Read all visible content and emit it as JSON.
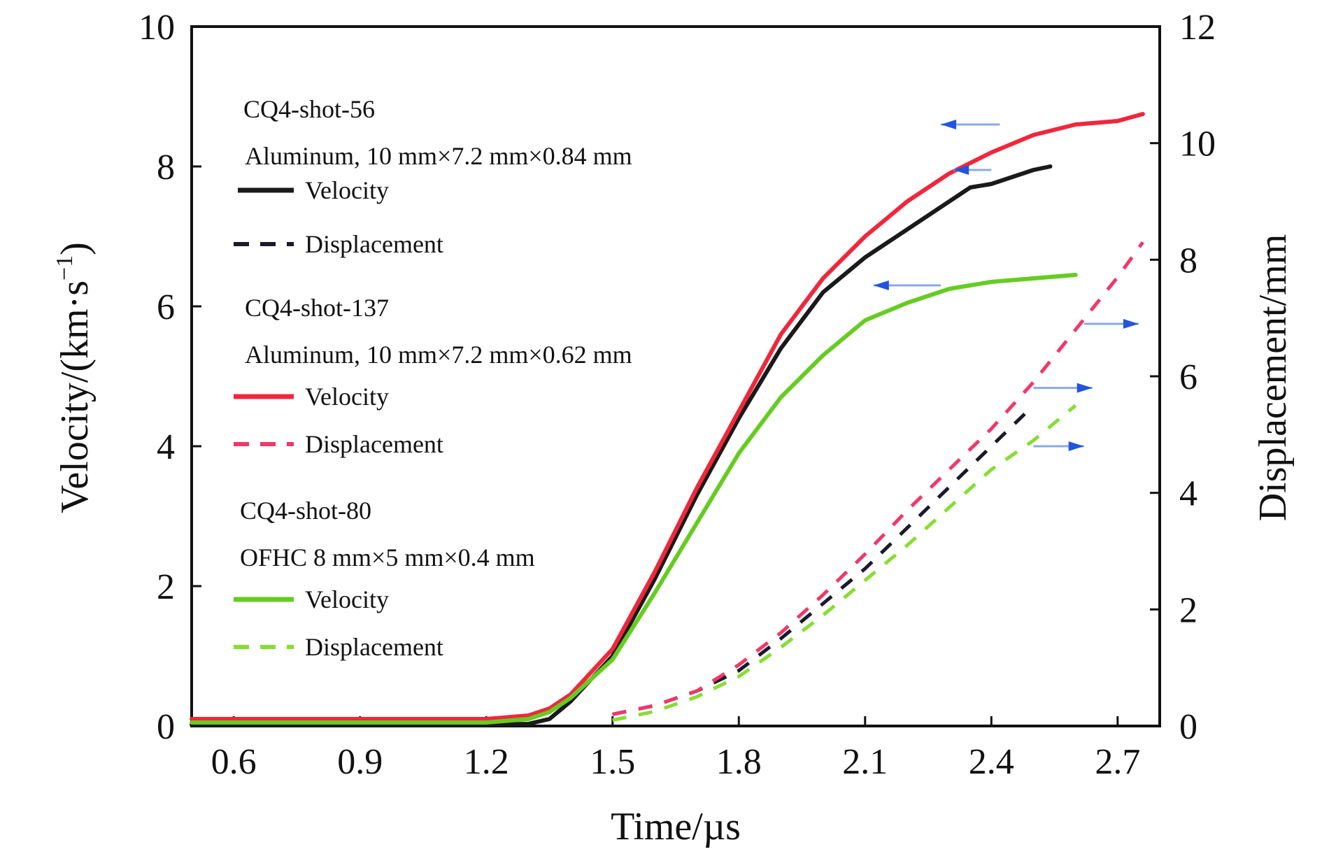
{
  "chart_data": {
    "type": "line",
    "xlabel": "Time/µs",
    "ylabel": "Velocity/(km·s",
    "ylabel_sup": "−1",
    "ylabel_close": ")",
    "y2label": "Displacement/mm",
    "xlim": [
      0.5,
      2.8
    ],
    "ylim": [
      0,
      10
    ],
    "y2lim": [
      0,
      12
    ],
    "xticks": [
      "0.6",
      "0.9",
      "1.2",
      "1.5",
      "1.8",
      "2.1",
      "2.4",
      "2.7"
    ],
    "xtick_values": [
      0.6,
      0.9,
      1.2,
      1.5,
      1.8,
      2.1,
      2.4,
      2.7
    ],
    "yticks": [
      "0",
      "2",
      "4",
      "6",
      "8",
      "10"
    ],
    "ytick_values": [
      0,
      2,
      4,
      6,
      8,
      10
    ],
    "y2ticks": [
      "0",
      "2",
      "4",
      "6",
      "8",
      "10",
      "12"
    ],
    "y2tick_values": [
      0,
      2,
      4,
      6,
      8,
      10,
      12
    ],
    "legend": [
      {
        "shot": "CQ4-shot-56",
        "material": "Aluminum, 10 mm×7.2 mm×0.84 mm",
        "velocity_label": "Velocity",
        "displacement_label": "Displacement",
        "color": "#1a1a1a",
        "disp_color": "#1a1a2a"
      },
      {
        "shot": "CQ4-shot-137",
        "material": "Aluminum, 10 mm×7.2 mm×0.62 mm",
        "velocity_label": "Velocity",
        "displacement_label": "Displacement",
        "color": "#f0273c",
        "disp_color": "#f0386a"
      },
      {
        "shot": "CQ4-shot-80",
        "material": "OFHC 8 mm×5 mm×0.4 mm",
        "velocity_label": "Velocity",
        "displacement_label": "Displacement",
        "color": "#66cc22",
        "disp_color": "#88dd33"
      }
    ],
    "series": [
      {
        "shot": "CQ4-shot-56",
        "quantity": "velocity",
        "axis": "left",
        "style": "solid",
        "color": "#1a1a1a",
        "x": [
          0.5,
          1.2,
          1.3,
          1.35,
          1.4,
          1.5,
          1.6,
          1.7,
          1.8,
          1.9,
          2.0,
          2.1,
          2.2,
          2.3,
          2.35,
          2.4,
          2.45,
          2.5,
          2.54
        ],
        "y": [
          0.02,
          0.02,
          0.03,
          0.1,
          0.35,
          1.0,
          2.1,
          3.3,
          4.4,
          5.4,
          6.2,
          6.7,
          7.1,
          7.5,
          7.7,
          7.75,
          7.85,
          7.95,
          8.0
        ]
      },
      {
        "shot": "CQ4-shot-137",
        "quantity": "velocity",
        "axis": "left",
        "style": "solid",
        "color": "#f0273c",
        "x": [
          0.5,
          1.2,
          1.3,
          1.35,
          1.4,
          1.5,
          1.6,
          1.7,
          1.8,
          1.9,
          2.0,
          2.1,
          2.2,
          2.3,
          2.4,
          2.5,
          2.6,
          2.7,
          2.76
        ],
        "y": [
          0.1,
          0.1,
          0.15,
          0.25,
          0.45,
          1.1,
          2.2,
          3.4,
          4.5,
          5.6,
          6.4,
          7.0,
          7.5,
          7.9,
          8.2,
          8.45,
          8.6,
          8.65,
          8.75
        ]
      },
      {
        "shot": "CQ4-shot-80",
        "quantity": "velocity",
        "axis": "left",
        "style": "solid",
        "color": "#66cc22",
        "x": [
          0.5,
          1.2,
          1.3,
          1.35,
          1.4,
          1.5,
          1.6,
          1.7,
          1.8,
          1.9,
          2.0,
          2.1,
          2.2,
          2.3,
          2.4,
          2.5,
          2.6
        ],
        "y": [
          0.05,
          0.05,
          0.1,
          0.2,
          0.4,
          0.95,
          1.9,
          2.9,
          3.9,
          4.7,
          5.3,
          5.8,
          6.05,
          6.25,
          6.35,
          6.4,
          6.45
        ]
      },
      {
        "shot": "CQ4-shot-56",
        "quantity": "displacement",
        "axis": "right",
        "style": "dashed",
        "color": "#1a1a2a",
        "x": [
          1.5,
          1.6,
          1.7,
          1.8,
          1.9,
          2.0,
          2.1,
          2.2,
          2.3,
          2.4,
          2.5
        ],
        "y": [
          0.2,
          0.35,
          0.6,
          0.95,
          1.5,
          2.1,
          2.7,
          3.4,
          4.1,
          4.8,
          5.5
        ]
      },
      {
        "shot": "CQ4-shot-137",
        "quantity": "displacement",
        "axis": "right",
        "style": "dashed",
        "color": "#f0386a",
        "x": [
          1.5,
          1.6,
          1.7,
          1.8,
          1.9,
          2.0,
          2.1,
          2.2,
          2.3,
          2.4,
          2.5,
          2.6,
          2.7,
          2.76
        ],
        "y": [
          0.2,
          0.35,
          0.6,
          1.05,
          1.6,
          2.25,
          2.95,
          3.7,
          4.4,
          5.1,
          5.9,
          6.8,
          7.7,
          8.3
        ]
      },
      {
        "shot": "CQ4-shot-80",
        "quantity": "displacement",
        "axis": "right",
        "style": "dashed",
        "color": "#88dd33",
        "x": [
          1.5,
          1.6,
          1.7,
          1.8,
          1.9,
          2.0,
          2.1,
          2.2,
          2.3,
          2.4,
          2.5,
          2.6
        ],
        "y": [
          0.1,
          0.25,
          0.5,
          0.85,
          1.35,
          1.9,
          2.5,
          3.1,
          3.75,
          4.4,
          4.9,
          5.5
        ]
      }
    ],
    "annotation_arrows": [
      {
        "from_x": 2.42,
        "to_x": 2.28,
        "y": 8.6,
        "axis": "left",
        "direction": "left",
        "color": "#2255dd"
      },
      {
        "from_x": 2.4,
        "to_x": 2.31,
        "y": 7.95,
        "axis": "left",
        "direction": "left",
        "color": "#2255dd"
      },
      {
        "from_x": 2.28,
        "to_x": 2.12,
        "y": 6.3,
        "axis": "left",
        "direction": "left",
        "color": "#2255dd"
      },
      {
        "from_x": 2.62,
        "to_x": 2.75,
        "y": 6.9,
        "axis": "right",
        "direction": "right",
        "color": "#2255dd"
      },
      {
        "from_x": 2.5,
        "to_x": 2.64,
        "y": 5.8,
        "axis": "right",
        "direction": "right",
        "color": "#2255dd"
      },
      {
        "from_x": 2.5,
        "to_x": 2.62,
        "y": 4.8,
        "axis": "right",
        "direction": "right",
        "color": "#2255dd"
      }
    ]
  }
}
